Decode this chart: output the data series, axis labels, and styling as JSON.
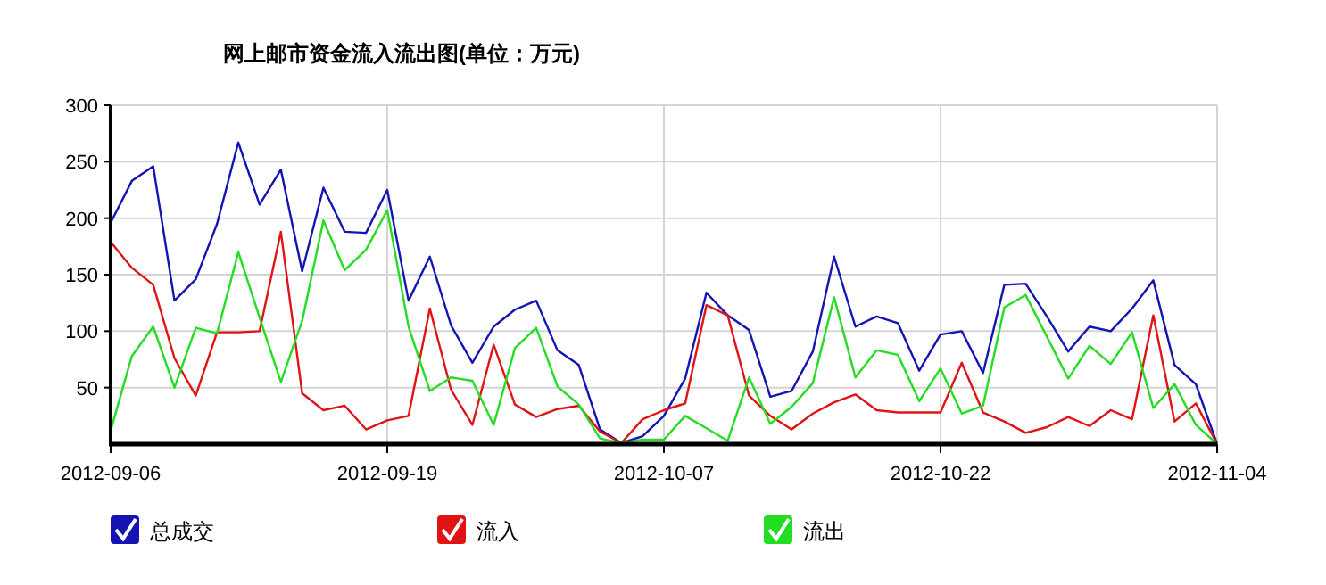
{
  "chart_data": {
    "type": "line",
    "title": "网上邮市资金流入流出图(单位：万元)",
    "categories": [
      "2012-09-06",
      null,
      null,
      null,
      null,
      null,
      null,
      null,
      null,
      null,
      null,
      null,
      null,
      "2012-09-19",
      null,
      null,
      null,
      null,
      null,
      null,
      null,
      null,
      null,
      null,
      null,
      null,
      "2012-10-07",
      null,
      null,
      null,
      null,
      null,
      null,
      null,
      null,
      null,
      null,
      null,
      null,
      "2012-10-22",
      null,
      null,
      null,
      null,
      null,
      null,
      null,
      null,
      null,
      null,
      null,
      null,
      "2012-11-04"
    ],
    "series": [
      {
        "name": "总成交",
        "color": "#1414b4",
        "values": [
          196,
          233,
          246,
          127,
          146,
          195,
          267,
          212,
          243,
          153,
          227,
          188,
          187,
          225,
          127,
          166,
          105,
          72,
          104,
          119,
          127,
          83,
          70,
          13,
          1,
          7,
          25,
          58,
          134,
          114,
          101,
          42,
          47,
          82,
          166,
          104,
          113,
          107,
          65,
          97,
          100,
          63,
          141,
          142,
          113,
          82,
          104,
          100,
          120,
          145,
          70,
          53,
          0
        ]
      },
      {
        "name": "流入",
        "color": "#e01414",
        "values": [
          179,
          156,
          141,
          76,
          43,
          99,
          99,
          100,
          188,
          45,
          30,
          34,
          13,
          21,
          25,
          120,
          48,
          17,
          88,
          35,
          24,
          31,
          34,
          11,
          1,
          22,
          30,
          36,
          123,
          114,
          43,
          25,
          13,
          27,
          37,
          44,
          30,
          28,
          28,
          28,
          72,
          28,
          20,
          10,
          15,
          24,
          16,
          30,
          22,
          114,
          20,
          36,
          0
        ]
      },
      {
        "name": "流出",
        "color": "#22dd22",
        "values": [
          12,
          78,
          104,
          50,
          103,
          98,
          170,
          112,
          55,
          109,
          198,
          154,
          172,
          207,
          104,
          47,
          59,
          56,
          17,
          85,
          103,
          51,
          35,
          5,
          1,
          4,
          4,
          25,
          14,
          3,
          59,
          18,
          33,
          54,
          130,
          59,
          83,
          79,
          38,
          67,
          27,
          34,
          121,
          132,
          95,
          58,
          87,
          71,
          99,
          32,
          53,
          17,
          0
        ]
      }
    ],
    "ylim": [
      0,
      300
    ],
    "yticks": [
      50,
      100,
      150,
      200,
      250,
      300
    ],
    "grid": true,
    "legend": "bottom",
    "marker": "none",
    "line_style": "solid"
  }
}
